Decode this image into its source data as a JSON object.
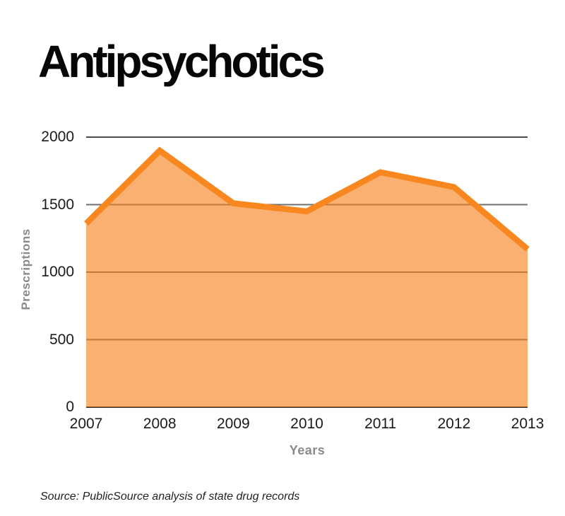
{
  "page": {
    "title": "Antipsychotics",
    "source_note": "Source: PublicSource analysis of state drug records"
  },
  "chart_data": {
    "type": "area",
    "title": "Antipsychotics",
    "xlabel": "Years",
    "ylabel": "Prescriptions",
    "categories": [
      "2007",
      "2008",
      "2009",
      "2010",
      "2011",
      "2012",
      "2013"
    ],
    "values": [
      1360,
      1900,
      1510,
      1450,
      1740,
      1630,
      1170
    ],
    "ylim": [
      0,
      2000
    ],
    "yticks": [
      2000,
      1500,
      1000,
      500,
      0
    ],
    "grid": true,
    "legend_position": "none",
    "colors": {
      "line": "#F7871E",
      "fill": "rgba(247,127,26,0.62)",
      "grid": "#6f6f6f",
      "grid_top": "#4a4a4a",
      "axis_bottom": "#2f2f2f",
      "tick_text": "#1a1a1a",
      "axis_title_text": "#8a8a8a",
      "title_text": "#060606",
      "source_text": "#222222"
    },
    "source": "Source: PublicSource analysis of state drug records"
  }
}
